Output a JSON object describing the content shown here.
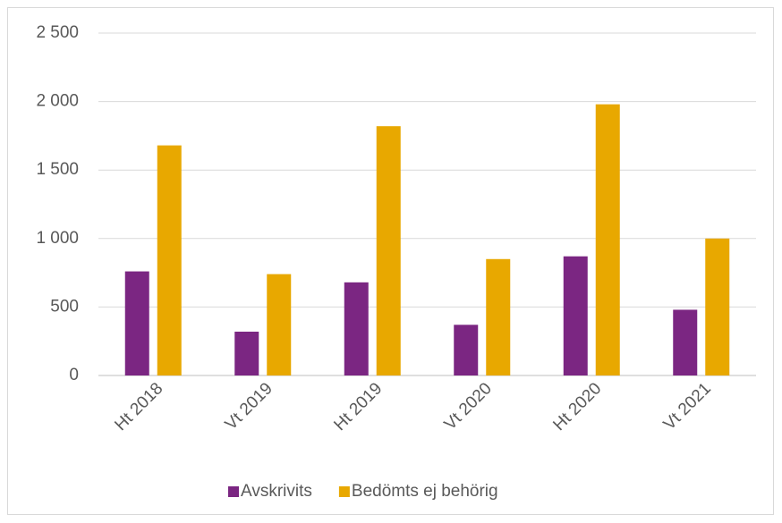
{
  "chart_data": {
    "type": "bar",
    "categories": [
      "Ht 2018",
      "Vt 2019",
      "Ht 2019",
      "Vt 2020",
      "Ht 2020",
      "Vt 2021"
    ],
    "series": [
      {
        "name": "Avskrivits",
        "color": "#7b2682",
        "values": [
          760,
          320,
          680,
          370,
          870,
          480
        ]
      },
      {
        "name": "Bedömts ej behörig",
        "color": "#e8a800",
        "values": [
          1680,
          740,
          1820,
          850,
          1980,
          1000
        ]
      }
    ],
    "ylim": [
      0,
      2500
    ],
    "yticks": [
      0,
      500,
      {
        "value": 1000,
        "label": "1 000"
      },
      {
        "value": 1500,
        "label": "1 500"
      },
      {
        "value": 2000,
        "label": "2 000"
      },
      {
        "value": 2500,
        "label": "2 500"
      }
    ],
    "grid": true,
    "legend": "bottom"
  }
}
